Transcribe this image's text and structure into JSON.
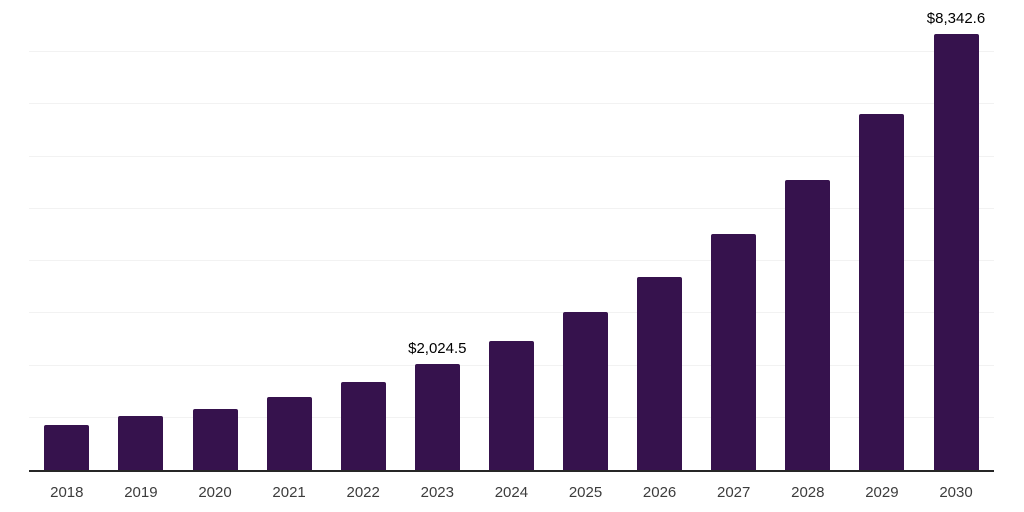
{
  "chart_data": {
    "type": "bar",
    "categories": [
      "2018",
      "2019",
      "2020",
      "2021",
      "2022",
      "2023",
      "2024",
      "2025",
      "2026",
      "2027",
      "2028",
      "2029",
      "2030"
    ],
    "values": [
      855,
      1030,
      1170,
      1405,
      1680,
      2024.5,
      2465,
      3020,
      3695,
      4520,
      5560,
      6810,
      8342.6
    ],
    "labeled_points": [
      {
        "category": "2023",
        "label": "$2,024.5"
      },
      {
        "category": "2030",
        "label": "$8,342.6"
      }
    ],
    "title": "",
    "xlabel": "",
    "ylabel": "",
    "ylim": [
      0,
      9000
    ],
    "gridline_step": 1000,
    "grid": "horizontal-only",
    "legend": "none",
    "colors": {
      "bar": "#36124d",
      "gridline": "#f2f2f2",
      "axis_line": "#262626",
      "tick_label": "#3c3c3c",
      "data_label": "#000000",
      "background": "#ffffff"
    }
  }
}
